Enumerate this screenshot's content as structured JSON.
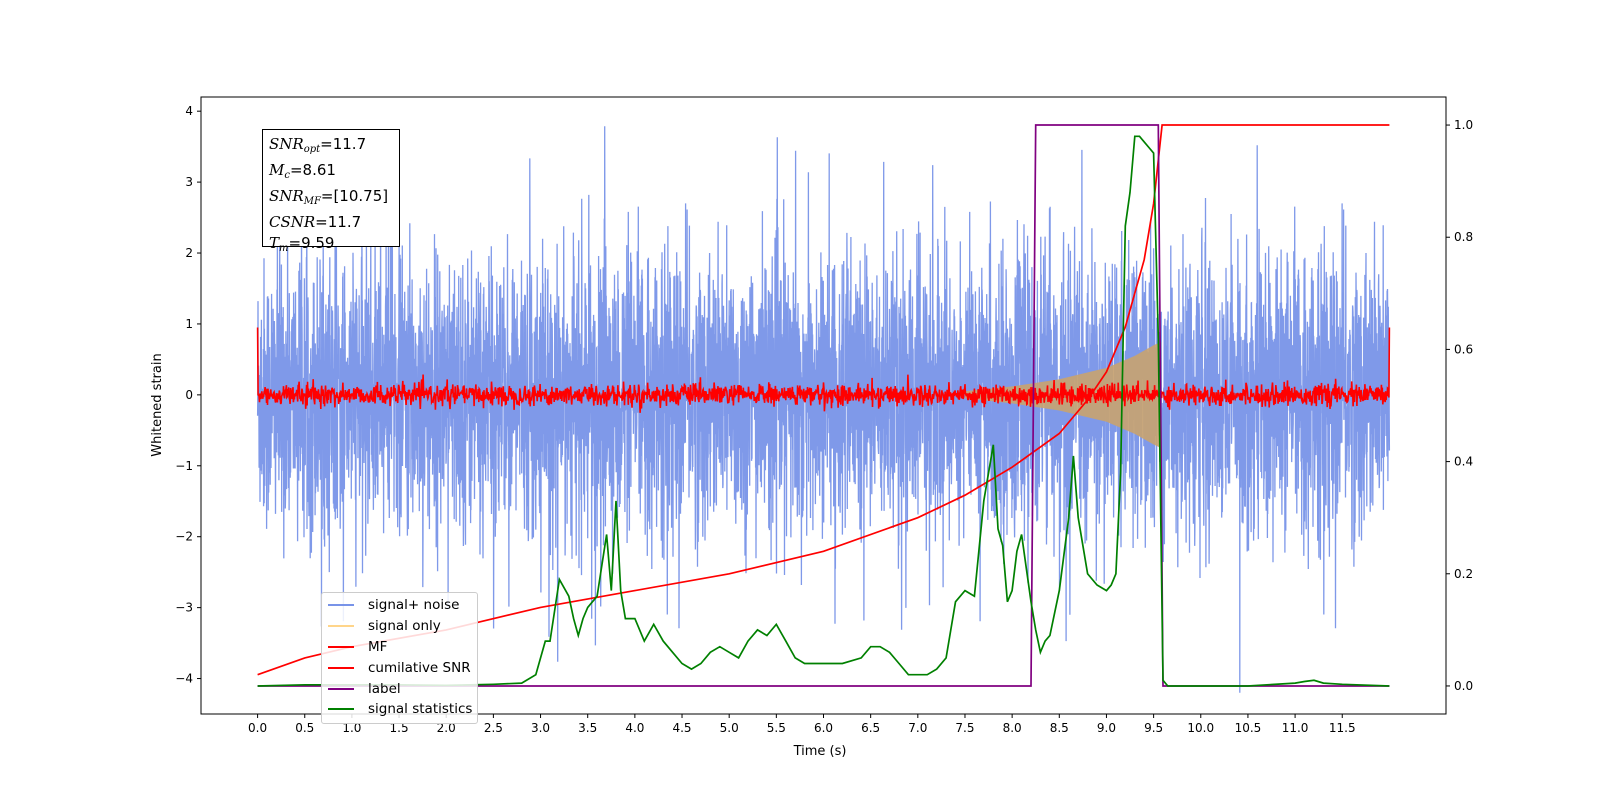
{
  "chart_data": {
    "type": "line",
    "title": "",
    "xlabel": "Time (s)",
    "ylabel": "Whitened strain",
    "y2label": "",
    "xlim": [
      -0.6,
      12.6
    ],
    "ylim": [
      -4.5,
      4.2
    ],
    "y2lim": [
      -0.05,
      1.05
    ],
    "grid": false,
    "legend_position": "lower-left",
    "x_ticks": [
      "0.0",
      "0.5",
      "1.0",
      "1.5",
      "2.0",
      "2.5",
      "3.0",
      "3.5",
      "4.0",
      "4.5",
      "5.0",
      "5.5",
      "6.0",
      "6.5",
      "7.0",
      "7.5",
      "8.0",
      "8.5",
      "9.0",
      "9.5",
      "10.0",
      "10.5",
      "11.0",
      "11.5"
    ],
    "y_ticks": [
      "4",
      "3",
      "2",
      "1",
      "0",
      "−1",
      "−2",
      "−3",
      "−4"
    ],
    "y2_ticks": [
      "1.0",
      "0.8",
      "0.6",
      "0.4",
      "0.2",
      "0.0"
    ],
    "info_box": {
      "snr_opt_sym": "SNR",
      "snr_opt_sub": "opt",
      "snr_opt_val": "=11.7",
      "mc_sym": "M",
      "mc_sub": "c",
      "mc_val": "=8.61",
      "snr_mf_sym": "SNR",
      "snr_mf_sub": "MF",
      "snr_mf_val": "=[10.75]",
      "csnr_sym": "CSNR",
      "csnr_val": "=11.7",
      "tm_sym": "T",
      "tm_sub": "m",
      "tm_val": "=9.59"
    },
    "series": [
      {
        "name": "signal+ noise",
        "color": "#7893e8",
        "axis": "left",
        "description_values": {
          "x_range": [
            0.0,
            12.0
          ],
          "typical_range": [
            -2.2,
            2.2
          ],
          "peaks": [
            3.8,
            -4.2
          ]
        }
      },
      {
        "name": "signal only",
        "color": "#ffd58a",
        "axis": "left",
        "envelope": {
          "x": [
            7.5,
            8.0,
            8.5,
            9.0,
            9.3,
            9.5,
            9.58
          ],
          "amp": [
            0.05,
            0.12,
            0.22,
            0.38,
            0.55,
            0.7,
            0.75
          ]
        }
      },
      {
        "name": "MF",
        "color": "#ff0000",
        "axis": "left",
        "description_values": {
          "typical_range": [
            -0.15,
            0.15
          ]
        }
      },
      {
        "name": "cumilative SNR",
        "color": "#ff0000",
        "axis": "right",
        "x": [
          0.0,
          0.5,
          1.0,
          2.0,
          3.0,
          4.0,
          5.0,
          6.0,
          7.0,
          7.5,
          8.0,
          8.5,
          8.8,
          9.0,
          9.2,
          9.4,
          9.5,
          9.59,
          12.0
        ],
        "y": [
          0.02,
          0.05,
          0.07,
          0.1,
          0.14,
          0.17,
          0.2,
          0.24,
          0.3,
          0.34,
          0.39,
          0.45,
          0.51,
          0.56,
          0.64,
          0.76,
          0.86,
          1.0,
          1.0
        ]
      },
      {
        "name": "label",
        "color": "#800080",
        "axis": "right",
        "x": [
          0.0,
          8.2,
          8.25,
          9.55,
          9.6,
          12.0
        ],
        "y": [
          0.0,
          0.0,
          1.0,
          1.0,
          0.0,
          0.0
        ]
      },
      {
        "name": "signal statistics",
        "color": "#008000",
        "axis": "right",
        "x": [
          0.0,
          0.5,
          1.0,
          1.5,
          2.0,
          2.5,
          2.8,
          2.95,
          3.05,
          3.1,
          3.2,
          3.3,
          3.35,
          3.4,
          3.45,
          3.5,
          3.6,
          3.7,
          3.75,
          3.8,
          3.85,
          3.9,
          4.0,
          4.1,
          4.2,
          4.3,
          4.4,
          4.5,
          4.6,
          4.7,
          4.8,
          4.9,
          5.0,
          5.1,
          5.2,
          5.3,
          5.4,
          5.5,
          5.6,
          5.7,
          5.8,
          6.0,
          6.2,
          6.4,
          6.5,
          6.6,
          6.7,
          6.8,
          6.9,
          7.0,
          7.1,
          7.2,
          7.3,
          7.4,
          7.5,
          7.6,
          7.7,
          7.8,
          7.85,
          7.9,
          7.95,
          8.0,
          8.05,
          8.1,
          8.15,
          8.2,
          8.25,
          8.3,
          8.35,
          8.4,
          8.5,
          8.6,
          8.65,
          8.7,
          8.75,
          8.8,
          8.9,
          9.0,
          9.05,
          9.1,
          9.15,
          9.2,
          9.25,
          9.3,
          9.35,
          9.4,
          9.45,
          9.5,
          9.55,
          9.6,
          9.65,
          10.0,
          10.5,
          11.0,
          11.1,
          11.2,
          11.3,
          11.5,
          12.0
        ],
        "y": [
          0.0,
          0.002,
          0.002,
          0.002,
          0.001,
          0.003,
          0.005,
          0.02,
          0.08,
          0.08,
          0.19,
          0.16,
          0.12,
          0.09,
          0.12,
          0.14,
          0.16,
          0.27,
          0.17,
          0.33,
          0.17,
          0.12,
          0.12,
          0.08,
          0.11,
          0.08,
          0.06,
          0.04,
          0.03,
          0.04,
          0.06,
          0.07,
          0.06,
          0.05,
          0.08,
          0.1,
          0.09,
          0.11,
          0.08,
          0.05,
          0.04,
          0.04,
          0.04,
          0.05,
          0.07,
          0.07,
          0.06,
          0.04,
          0.02,
          0.02,
          0.02,
          0.03,
          0.05,
          0.15,
          0.17,
          0.16,
          0.33,
          0.43,
          0.28,
          0.25,
          0.15,
          0.17,
          0.24,
          0.27,
          0.21,
          0.15,
          0.1,
          0.06,
          0.08,
          0.09,
          0.17,
          0.3,
          0.41,
          0.3,
          0.25,
          0.2,
          0.18,
          0.17,
          0.18,
          0.2,
          0.38,
          0.82,
          0.88,
          0.98,
          0.98,
          0.97,
          0.96,
          0.95,
          0.62,
          0.01,
          0.0,
          0.0,
          0.0,
          0.005,
          0.008,
          0.01,
          0.005,
          0.003,
          0.0
        ]
      }
    ]
  }
}
